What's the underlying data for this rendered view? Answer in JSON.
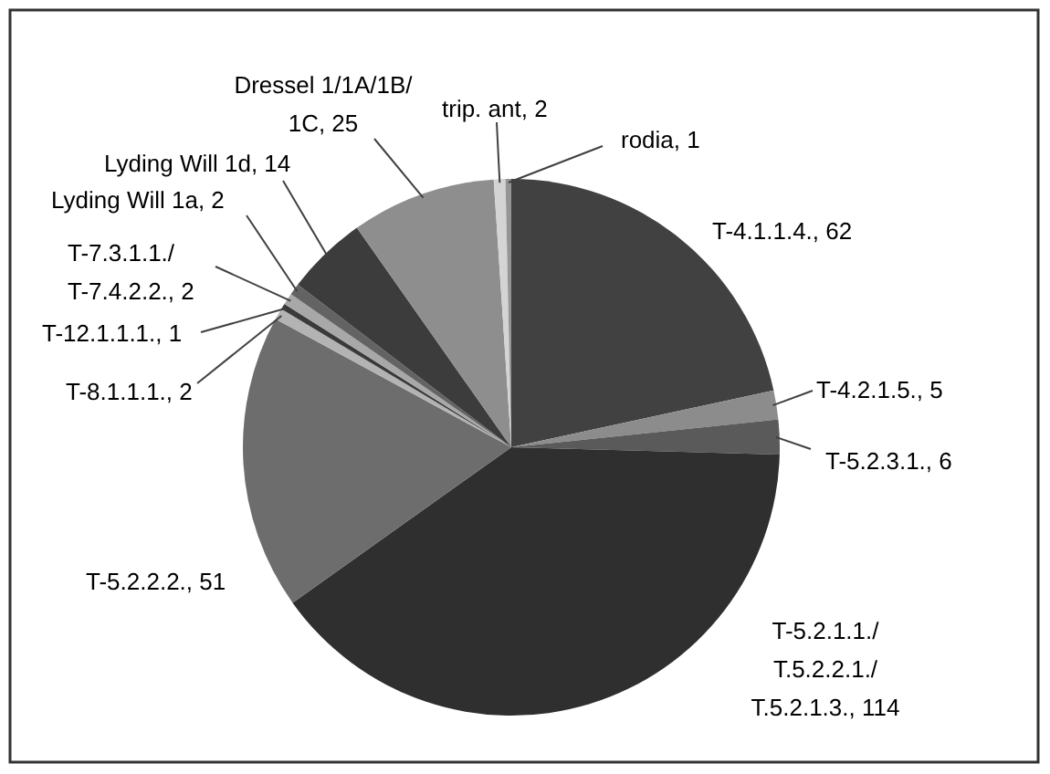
{
  "chart_data": {
    "type": "pie",
    "categories": [
      "T-4.1.1.4.",
      "T-4.2.1.5.",
      "T-5.2.3.1.",
      "T-5.2.1.1./T.5.2.2.1./T.5.2.1.3.",
      "T-5.2.2.2.",
      "T-8.1.1.1.",
      "T-12.1.1.1.",
      "T-7.3.1.1./T-7.4.2.2.",
      "Lyding Will 1a",
      "Lyding Will 1d",
      "Dressel 1/1A/1B/1C",
      "trip. ant",
      "rodia"
    ],
    "values": [
      62,
      5,
      6,
      114,
      51,
      2,
      1,
      2,
      2,
      14,
      25,
      2,
      1
    ],
    "value_labels": [
      ", 62",
      ", 5",
      ", 6",
      ", 114",
      ", 51",
      ", 2",
      ", 1",
      ", 2",
      ", 2",
      ", 14",
      ", 25",
      ", 2",
      ", 1"
    ],
    "colors": [
      "#414141",
      "#8c8c8c",
      "#5a5a5a",
      "#2f2f2f",
      "#6d6d6d",
      "#b3b3b3",
      "#3a3a3a",
      "#a8a8a8",
      "#636363",
      "#3c3c3c",
      "#8e8e8e",
      "#d4d4d4",
      "#959595"
    ]
  }
}
